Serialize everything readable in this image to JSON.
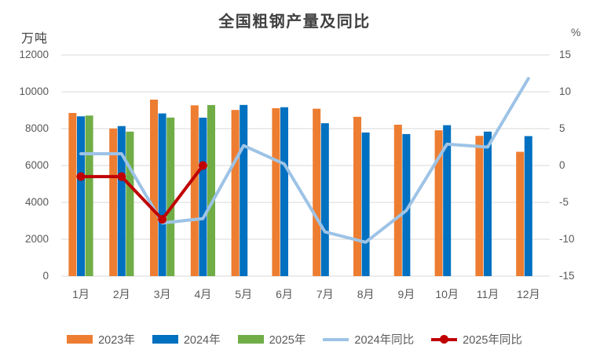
{
  "title": "全国粗钢产量及同比",
  "left_axis_unit": "万吨",
  "right_axis_unit": "%",
  "colors": {
    "bar_2023": "#ED7D31",
    "bar_2024": "#0070C0",
    "bar_2025": "#70AD47",
    "line_2024_yoy": "#9DC3E6",
    "line_2025_yoy": "#C00000",
    "gridline": "#D9D9D9",
    "tick_text": "#595959",
    "title_text": "#404040"
  },
  "chart_data": {
    "type": "bar",
    "subtype": "combo-bar-line",
    "title": "全国粗钢产量及同比",
    "categories": [
      "1月",
      "2月",
      "3月",
      "4月",
      "5月",
      "6月",
      "7月",
      "8月",
      "9月",
      "10月",
      "11月",
      "12月"
    ],
    "bar_series": [
      {
        "name": "2023年",
        "color": "#ED7D31",
        "axis": "left",
        "values": [
          8850,
          8010,
          9573,
          9264,
          9012,
          9111,
          9080,
          8641,
          8211,
          7909,
          7610,
          6744
        ]
      },
      {
        "name": "2024年",
        "color": "#0070C0",
        "axis": "left",
        "values": [
          8670,
          8140,
          8827,
          8594,
          9286,
          9161,
          8294,
          7792,
          7707,
          8188,
          7840,
          7597
        ]
      },
      {
        "name": "2025年",
        "color": "#70AD47",
        "axis": "left",
        "values": [
          8710,
          7840,
          8600,
          9280,
          null,
          null,
          null,
          null,
          null,
          null,
          null,
          null
        ]
      }
    ],
    "line_series": [
      {
        "name": "2024年同比",
        "color": "#9DC3E6",
        "axis": "right",
        "marker": false,
        "values": [
          1.6,
          1.6,
          -7.8,
          -7.2,
          2.7,
          0.2,
          -9.0,
          -10.4,
          -6.1,
          2.9,
          2.5,
          11.8
        ]
      },
      {
        "name": "2025年同比",
        "color": "#C00000",
        "axis": "right",
        "marker": true,
        "values": [
          -1.5,
          -1.5,
          -7.3,
          0.0,
          null,
          null,
          null,
          null,
          null,
          null,
          null,
          null
        ]
      }
    ],
    "left_axis": {
      "unit": "万吨",
      "min": 0,
      "max": 12000,
      "step": 2000,
      "ticks": [
        "12000",
        "10000",
        "8000",
        "6000",
        "4000",
        "2000",
        "0"
      ]
    },
    "right_axis": {
      "unit": "%",
      "min": -15,
      "max": 15,
      "step": 5,
      "ticks": [
        "15",
        "10",
        "5",
        "0",
        "-5",
        "-10",
        "-15"
      ]
    },
    "grid": true,
    "legend_position": "bottom"
  },
  "legend": [
    {
      "label": "2023年",
      "swatch": "bar",
      "color": "#ED7D31"
    },
    {
      "label": "2024年",
      "swatch": "bar",
      "color": "#0070C0"
    },
    {
      "label": "2025年",
      "swatch": "bar",
      "color": "#70AD47"
    },
    {
      "label": "2024年同比",
      "swatch": "line",
      "color": "#9DC3E6"
    },
    {
      "label": "2025年同比",
      "swatch": "line-dot",
      "color": "#C00000"
    }
  ]
}
